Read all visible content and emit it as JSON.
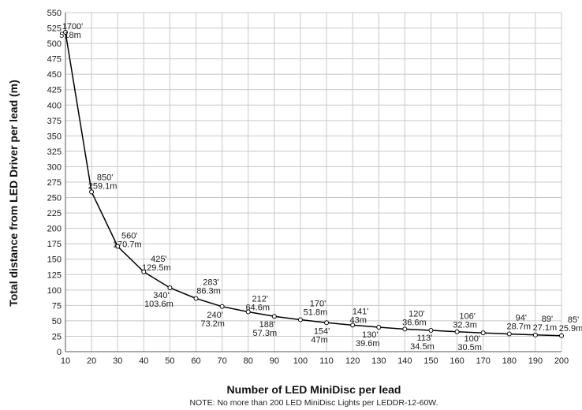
{
  "chart_data": {
    "type": "line",
    "xlabel": "Number of LED MiniDisc per lead",
    "ylabel": "Total distance from LED Driver per lead (m)",
    "note": "NOTE: No more than 200 LED MiniDisc Lights per LEDDR-12-60W.",
    "xlim": [
      10,
      200
    ],
    "ylim": [
      0,
      550
    ],
    "x_ticks": [
      10,
      20,
      30,
      40,
      50,
      60,
      70,
      80,
      90,
      100,
      110,
      120,
      130,
      140,
      150,
      160,
      170,
      180,
      190,
      200
    ],
    "y_ticks": [
      0,
      25,
      50,
      75,
      100,
      125,
      150,
      175,
      200,
      225,
      250,
      275,
      300,
      325,
      350,
      375,
      400,
      425,
      450,
      475,
      500,
      525,
      550
    ],
    "grid": true,
    "series": [
      {
        "x": [
          10,
          20,
          30,
          40,
          50,
          60,
          70,
          80,
          90,
          100,
          110,
          120,
          130,
          140,
          150,
          160,
          170,
          180,
          190,
          200
        ],
        "values": [
          518,
          259.1,
          170.7,
          129.5,
          103.6,
          86.3,
          73.2,
          64.6,
          57.3,
          51.8,
          47,
          43,
          39.6,
          36.6,
          34.5,
          32.3,
          30.5,
          28.7,
          27.1,
          25.9
        ]
      }
    ],
    "annotations": [
      {
        "feet": "1700'",
        "meters": "518m"
      },
      {
        "feet": "850'",
        "meters": "259.1m"
      },
      {
        "feet": "560'",
        "meters": "170.7m"
      },
      {
        "feet": "425'",
        "meters": "129.5m"
      },
      {
        "feet": "340'",
        "meters": "103.6m"
      },
      {
        "feet": "283'",
        "meters": "86.3m"
      },
      {
        "feet": "240'",
        "meters": "73.2m"
      },
      {
        "feet": "212'",
        "meters": "64.6m"
      },
      {
        "feet": "188'",
        "meters": "57.3m"
      },
      {
        "feet": "170'",
        "meters": "51.8m"
      },
      {
        "feet": "154'",
        "meters": "47m"
      },
      {
        "feet": "141'",
        "meters": "43m"
      },
      {
        "feet": "130'",
        "meters": "39.6m"
      },
      {
        "feet": "120'",
        "meters": "36.6m"
      },
      {
        "feet": "113'",
        "meters": "34.5m"
      },
      {
        "feet": "106'",
        "meters": "32.3m"
      },
      {
        "feet": "100'",
        "meters": "30.5m"
      },
      {
        "feet": "94'",
        "meters": "28.7m"
      },
      {
        "feet": "89'",
        "meters": "27.1m"
      },
      {
        "feet": "85'",
        "meters": "25.9m"
      }
    ]
  }
}
